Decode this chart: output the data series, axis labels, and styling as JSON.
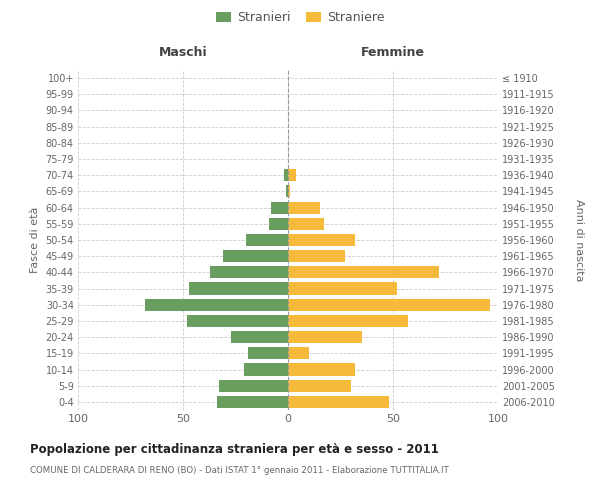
{
  "age_groups": [
    "0-4",
    "5-9",
    "10-14",
    "15-19",
    "20-24",
    "25-29",
    "30-34",
    "35-39",
    "40-44",
    "45-49",
    "50-54",
    "55-59",
    "60-64",
    "65-69",
    "70-74",
    "75-79",
    "80-84",
    "85-89",
    "90-94",
    "95-99",
    "100+"
  ],
  "birth_years": [
    "2006-2010",
    "2001-2005",
    "1996-2000",
    "1991-1995",
    "1986-1990",
    "1981-1985",
    "1976-1980",
    "1971-1975",
    "1966-1970",
    "1961-1965",
    "1956-1960",
    "1951-1955",
    "1946-1950",
    "1941-1945",
    "1936-1940",
    "1931-1935",
    "1926-1930",
    "1921-1925",
    "1916-1920",
    "1911-1915",
    "≤ 1910"
  ],
  "maschi": [
    34,
    33,
    21,
    19,
    27,
    48,
    68,
    47,
    37,
    31,
    20,
    9,
    8,
    1,
    2,
    0,
    0,
    0,
    0,
    0,
    0
  ],
  "femmine": [
    48,
    30,
    32,
    10,
    35,
    57,
    96,
    52,
    72,
    27,
    32,
    17,
    15,
    1,
    4,
    0,
    0,
    0,
    0,
    0,
    0
  ],
  "color_maschi": "#6a9e5f",
  "color_femmine": "#f5ba3a",
  "xlim": 100,
  "title": "Popolazione per cittadinanza straniera per età e sesso - 2011",
  "subtitle": "COMUNE DI CALDERARA DI RENO (BO) - Dati ISTAT 1° gennaio 2011 - Elaborazione TUTTITALIA.IT",
  "ylabel_left": "Fasce di età",
  "ylabel_right": "Anni di nascita",
  "legend_maschi": "Stranieri",
  "legend_femmine": "Straniere",
  "header_maschi": "Maschi",
  "header_femmine": "Femmine",
  "background_color": "#ffffff",
  "grid_color": "#cccccc"
}
